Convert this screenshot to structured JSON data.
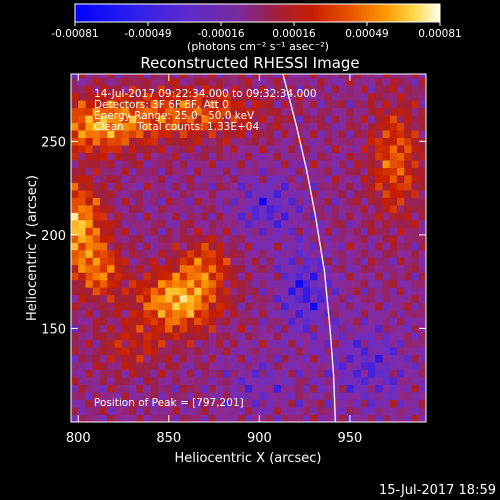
{
  "colorbar": {
    "ticks": [
      "-0.00081",
      "-0.00049",
      "-0.00016",
      "0.00016",
      "0.00049",
      "0.00081"
    ],
    "unit_label": "(photons cm⁻² s⁻¹ asec⁻²)",
    "colors": [
      "#0000ff",
      "#3c1ee0",
      "#6a2ec8",
      "#8a2a9a",
      "#a0203c",
      "#c81e00",
      "#e85000",
      "#ff9800",
      "#ffd84a",
      "#fffff0"
    ]
  },
  "chart_data": {
    "type": "heatmap",
    "title": "Reconstructed RHESSI Image",
    "xlabel": "Heliocentric X (arcsec)",
    "ylabel": "Heliocentric Y (arcsec)",
    "xlim": [
      796,
      992
    ],
    "ylim": [
      100,
      286
    ],
    "x_ticks": [
      800,
      850,
      900,
      950
    ],
    "y_ticks": [
      150,
      200,
      250
    ],
    "zlim": [
      -0.00081,
      0.00081
    ],
    "annotations": [
      "14-Jul-2017 09:22:34.000 to 09:32:34.000",
      "Detectors: 3F 6F 8F, Att 0",
      "Energy Range: 25.0 - 50.0 keV",
      "Clean    Total counts: 1.33E+04",
      "Position of Peak = [797,201]"
    ],
    "limb_curve": [
      [
        913,
        286
      ],
      [
        920,
        260
      ],
      [
        926,
        235
      ],
      [
        931,
        210
      ],
      [
        936,
        180
      ],
      [
        939,
        150
      ],
      [
        941,
        125
      ],
      [
        942,
        100
      ]
    ],
    "peak": [
      797,
      201
    ]
  },
  "timestamp": "15-Jul-2017 18:59"
}
